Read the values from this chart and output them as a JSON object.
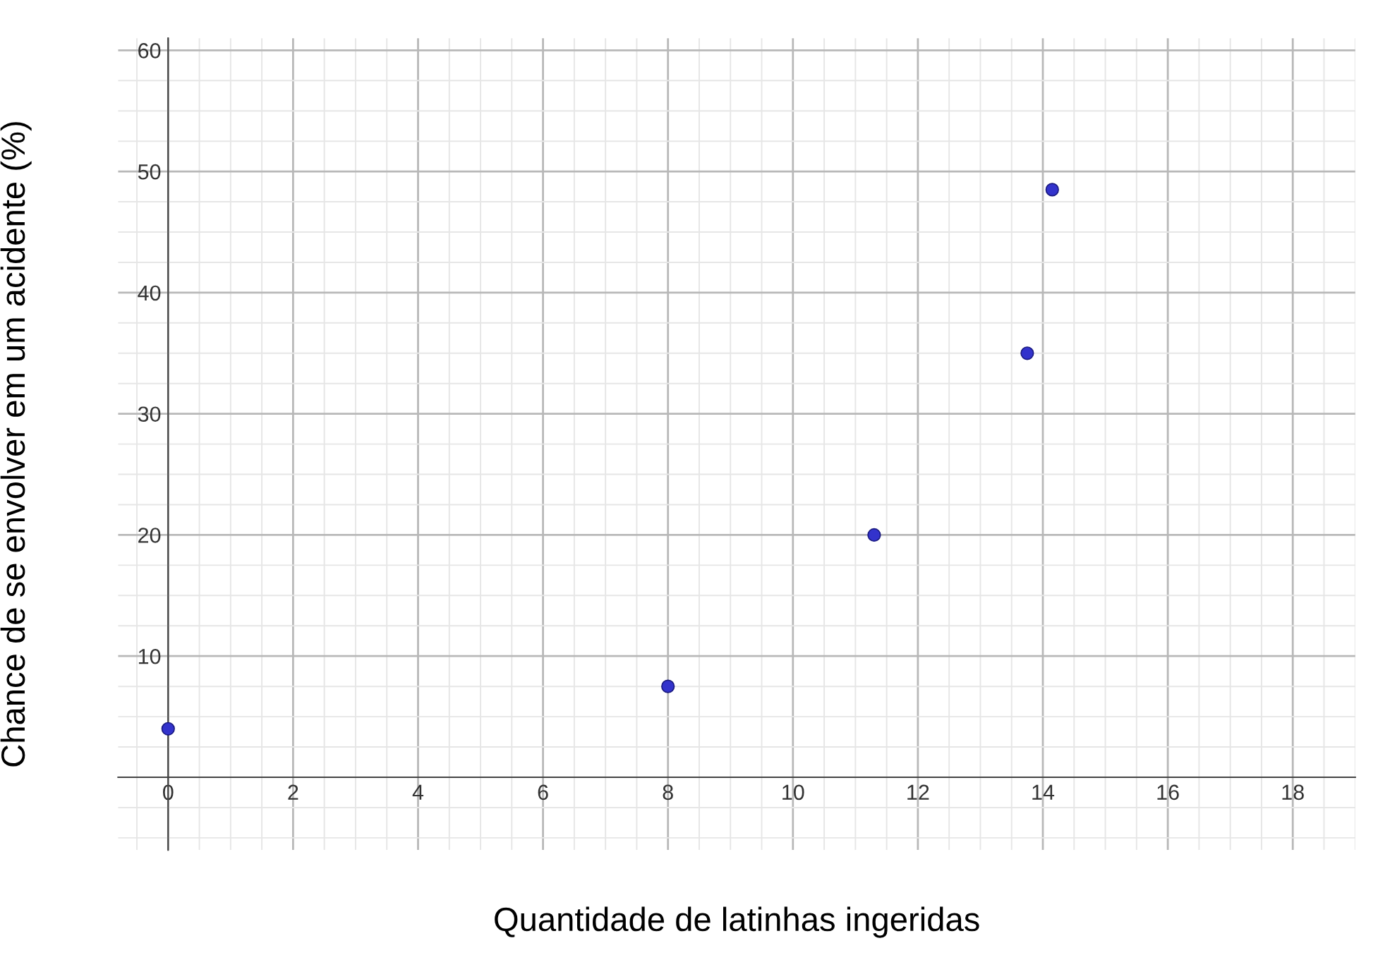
{
  "chart_data": {
    "type": "scatter",
    "xlabel": "Quantidade de latinhas ingeridas",
    "ylabel": "Chance de se envolver em um acidente (%)",
    "x": [
      0,
      8,
      11.3,
      13.75,
      14.15
    ],
    "series": [
      {
        "color": "#3333cc",
        "values": [
          4,
          7.5,
          20,
          35,
          48.5
        ]
      }
    ],
    "xlim": [
      -0.8,
      19
    ],
    "ylim": [
      -6,
      61
    ],
    "xticks": [
      0,
      2,
      4,
      6,
      8,
      10,
      12,
      14,
      16,
      18
    ],
    "yticks": [
      10,
      20,
      30,
      40,
      50,
      60
    ],
    "grid": true,
    "marker": "circle"
  }
}
